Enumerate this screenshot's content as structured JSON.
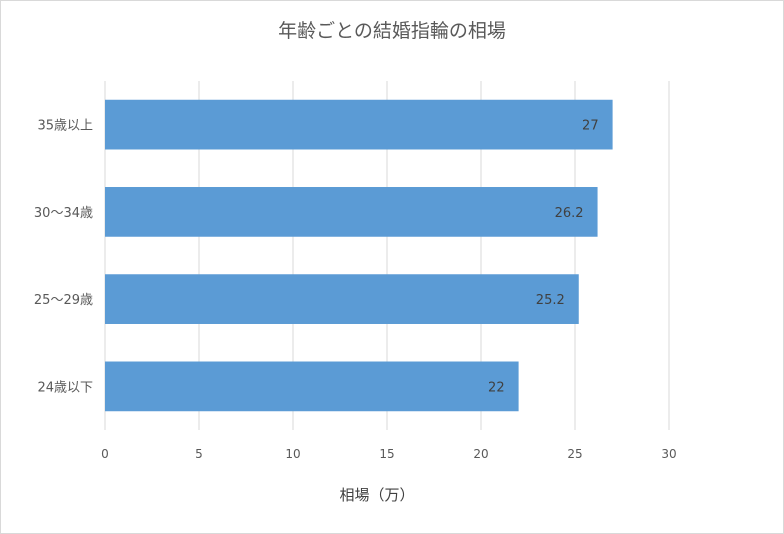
{
  "chart_data": {
    "type": "bar",
    "orientation": "horizontal",
    "title": "年齢ごとの結婚指輪の相場",
    "xlabel": "相場（万）",
    "ylabel": "",
    "categories": [
      "35歳以上",
      "30～34歳",
      "25～29歳",
      "24歳以下"
    ],
    "values": [
      27,
      26.2,
      25.2,
      22
    ],
    "data_labels": [
      "27",
      "26.2",
      "25.2",
      "22"
    ],
    "xlim": [
      0,
      30
    ],
    "x_ticks": [
      0,
      5,
      10,
      15,
      20,
      25,
      30
    ],
    "x_tick_labels": [
      "0",
      "5",
      "10",
      "15",
      "20",
      "25",
      "30"
    ],
    "grid": "vertical",
    "legend": "none",
    "bar_color": "#5b9bd5"
  }
}
